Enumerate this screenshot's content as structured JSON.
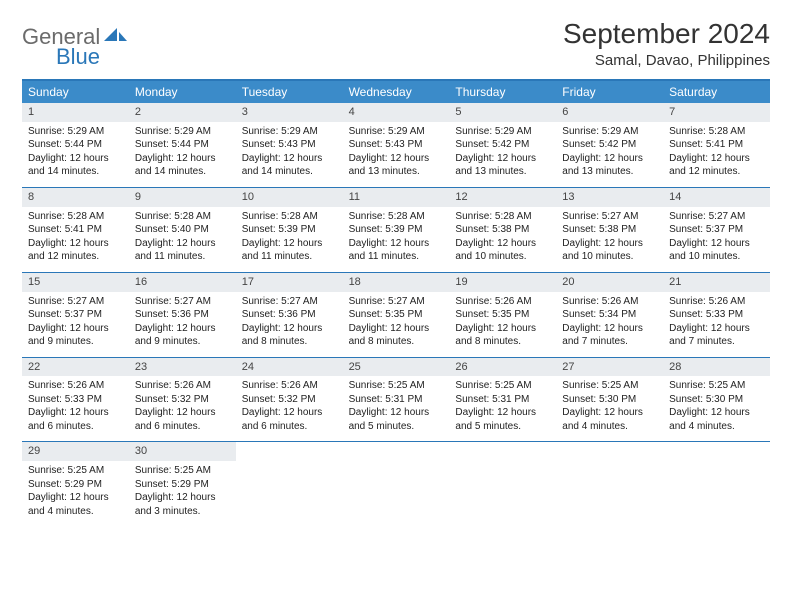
{
  "logo": {
    "word1": "General",
    "word2": "Blue"
  },
  "title": "September 2024",
  "location": "Samal, Davao, Philippines",
  "colors": {
    "header_bg": "#3b8bc9",
    "border": "#2a77b8",
    "daynum_bg": "#e9ecef",
    "logo_gray": "#6b6b6b",
    "logo_blue": "#2a77b8",
    "text": "#222222"
  },
  "weekdays": [
    "Sunday",
    "Monday",
    "Tuesday",
    "Wednesday",
    "Thursday",
    "Friday",
    "Saturday"
  ],
  "weeks": [
    [
      {
        "n": "1",
        "sr": "Sunrise: 5:29 AM",
        "ss": "Sunset: 5:44 PM",
        "d1": "Daylight: 12 hours",
        "d2": "and 14 minutes."
      },
      {
        "n": "2",
        "sr": "Sunrise: 5:29 AM",
        "ss": "Sunset: 5:44 PM",
        "d1": "Daylight: 12 hours",
        "d2": "and 14 minutes."
      },
      {
        "n": "3",
        "sr": "Sunrise: 5:29 AM",
        "ss": "Sunset: 5:43 PM",
        "d1": "Daylight: 12 hours",
        "d2": "and 14 minutes."
      },
      {
        "n": "4",
        "sr": "Sunrise: 5:29 AM",
        "ss": "Sunset: 5:43 PM",
        "d1": "Daylight: 12 hours",
        "d2": "and 13 minutes."
      },
      {
        "n": "5",
        "sr": "Sunrise: 5:29 AM",
        "ss": "Sunset: 5:42 PM",
        "d1": "Daylight: 12 hours",
        "d2": "and 13 minutes."
      },
      {
        "n": "6",
        "sr": "Sunrise: 5:29 AM",
        "ss": "Sunset: 5:42 PM",
        "d1": "Daylight: 12 hours",
        "d2": "and 13 minutes."
      },
      {
        "n": "7",
        "sr": "Sunrise: 5:28 AM",
        "ss": "Sunset: 5:41 PM",
        "d1": "Daylight: 12 hours",
        "d2": "and 12 minutes."
      }
    ],
    [
      {
        "n": "8",
        "sr": "Sunrise: 5:28 AM",
        "ss": "Sunset: 5:41 PM",
        "d1": "Daylight: 12 hours",
        "d2": "and 12 minutes."
      },
      {
        "n": "9",
        "sr": "Sunrise: 5:28 AM",
        "ss": "Sunset: 5:40 PM",
        "d1": "Daylight: 12 hours",
        "d2": "and 11 minutes."
      },
      {
        "n": "10",
        "sr": "Sunrise: 5:28 AM",
        "ss": "Sunset: 5:39 PM",
        "d1": "Daylight: 12 hours",
        "d2": "and 11 minutes."
      },
      {
        "n": "11",
        "sr": "Sunrise: 5:28 AM",
        "ss": "Sunset: 5:39 PM",
        "d1": "Daylight: 12 hours",
        "d2": "and 11 minutes."
      },
      {
        "n": "12",
        "sr": "Sunrise: 5:28 AM",
        "ss": "Sunset: 5:38 PM",
        "d1": "Daylight: 12 hours",
        "d2": "and 10 minutes."
      },
      {
        "n": "13",
        "sr": "Sunrise: 5:27 AM",
        "ss": "Sunset: 5:38 PM",
        "d1": "Daylight: 12 hours",
        "d2": "and 10 minutes."
      },
      {
        "n": "14",
        "sr": "Sunrise: 5:27 AM",
        "ss": "Sunset: 5:37 PM",
        "d1": "Daylight: 12 hours",
        "d2": "and 10 minutes."
      }
    ],
    [
      {
        "n": "15",
        "sr": "Sunrise: 5:27 AM",
        "ss": "Sunset: 5:37 PM",
        "d1": "Daylight: 12 hours",
        "d2": "and 9 minutes."
      },
      {
        "n": "16",
        "sr": "Sunrise: 5:27 AM",
        "ss": "Sunset: 5:36 PM",
        "d1": "Daylight: 12 hours",
        "d2": "and 9 minutes."
      },
      {
        "n": "17",
        "sr": "Sunrise: 5:27 AM",
        "ss": "Sunset: 5:36 PM",
        "d1": "Daylight: 12 hours",
        "d2": "and 8 minutes."
      },
      {
        "n": "18",
        "sr": "Sunrise: 5:27 AM",
        "ss": "Sunset: 5:35 PM",
        "d1": "Daylight: 12 hours",
        "d2": "and 8 minutes."
      },
      {
        "n": "19",
        "sr": "Sunrise: 5:26 AM",
        "ss": "Sunset: 5:35 PM",
        "d1": "Daylight: 12 hours",
        "d2": "and 8 minutes."
      },
      {
        "n": "20",
        "sr": "Sunrise: 5:26 AM",
        "ss": "Sunset: 5:34 PM",
        "d1": "Daylight: 12 hours",
        "d2": "and 7 minutes."
      },
      {
        "n": "21",
        "sr": "Sunrise: 5:26 AM",
        "ss": "Sunset: 5:33 PM",
        "d1": "Daylight: 12 hours",
        "d2": "and 7 minutes."
      }
    ],
    [
      {
        "n": "22",
        "sr": "Sunrise: 5:26 AM",
        "ss": "Sunset: 5:33 PM",
        "d1": "Daylight: 12 hours",
        "d2": "and 6 minutes."
      },
      {
        "n": "23",
        "sr": "Sunrise: 5:26 AM",
        "ss": "Sunset: 5:32 PM",
        "d1": "Daylight: 12 hours",
        "d2": "and 6 minutes."
      },
      {
        "n": "24",
        "sr": "Sunrise: 5:26 AM",
        "ss": "Sunset: 5:32 PM",
        "d1": "Daylight: 12 hours",
        "d2": "and 6 minutes."
      },
      {
        "n": "25",
        "sr": "Sunrise: 5:25 AM",
        "ss": "Sunset: 5:31 PM",
        "d1": "Daylight: 12 hours",
        "d2": "and 5 minutes."
      },
      {
        "n": "26",
        "sr": "Sunrise: 5:25 AM",
        "ss": "Sunset: 5:31 PM",
        "d1": "Daylight: 12 hours",
        "d2": "and 5 minutes."
      },
      {
        "n": "27",
        "sr": "Sunrise: 5:25 AM",
        "ss": "Sunset: 5:30 PM",
        "d1": "Daylight: 12 hours",
        "d2": "and 4 minutes."
      },
      {
        "n": "28",
        "sr": "Sunrise: 5:25 AM",
        "ss": "Sunset: 5:30 PM",
        "d1": "Daylight: 12 hours",
        "d2": "and 4 minutes."
      }
    ],
    [
      {
        "n": "29",
        "sr": "Sunrise: 5:25 AM",
        "ss": "Sunset: 5:29 PM",
        "d1": "Daylight: 12 hours",
        "d2": "and 4 minutes."
      },
      {
        "n": "30",
        "sr": "Sunrise: 5:25 AM",
        "ss": "Sunset: 5:29 PM",
        "d1": "Daylight: 12 hours",
        "d2": "and 3 minutes."
      },
      null,
      null,
      null,
      null,
      null
    ]
  ]
}
